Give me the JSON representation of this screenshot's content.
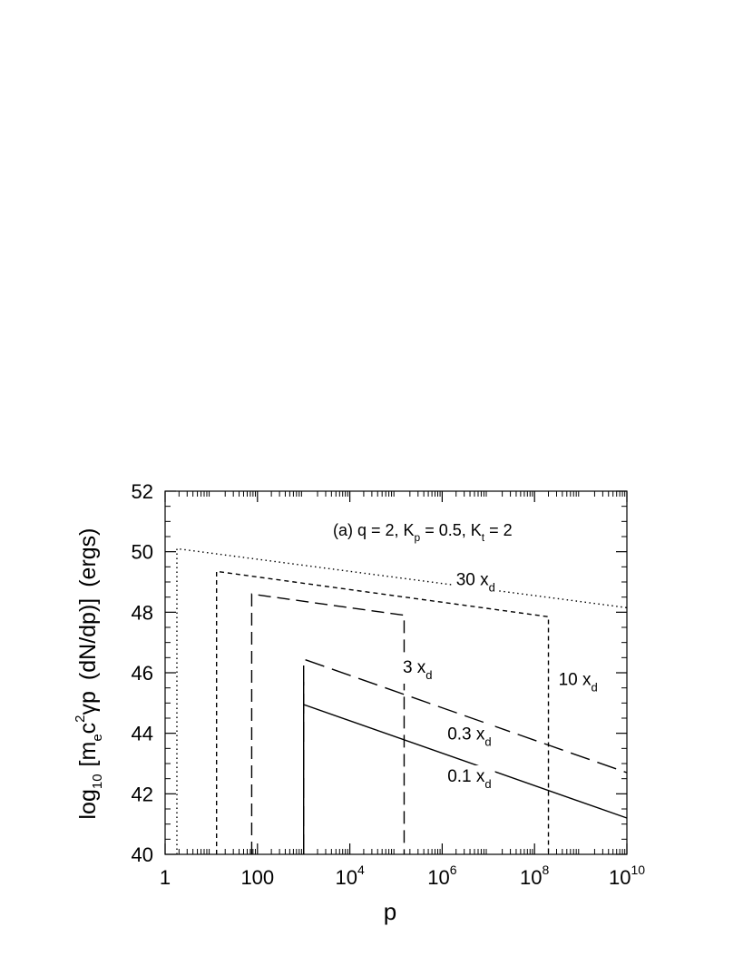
{
  "chart_data": {
    "type": "line",
    "xscale": "log",
    "xlabel": "p",
    "ylabel": {
      "prefix": "log",
      "prefix_sub": "10",
      "open": "[m",
      "me_sub": "e",
      "c": "c",
      "c_sup": "2",
      "gamma_p": "γp",
      "rest": "(dN/dp)]",
      "units": "(ergs)"
    },
    "xlim": [
      1,
      10000000000
    ],
    "ylim": [
      40,
      52
    ],
    "x_ticks": [
      {
        "value": 1,
        "base": "1",
        "exp": ""
      },
      {
        "value": 100,
        "base": "100",
        "exp": ""
      },
      {
        "value": 10000,
        "base": "10",
        "exp": "4"
      },
      {
        "value": 1000000,
        "base": "10",
        "exp": "6"
      },
      {
        "value": 100000000,
        "base": "10",
        "exp": "8"
      },
      {
        "value": 10000000000,
        "base": "10",
        "exp": "10"
      }
    ],
    "y_ticks": [
      "40",
      "42",
      "44",
      "46",
      "48",
      "50",
      "52"
    ],
    "annotation": {
      "prefix": "(a)  q = 2, K",
      "kp_sub": "p",
      "mid": " = 0.5, K",
      "kt_sub": "t",
      "suffix": " = 2"
    },
    "series": [
      {
        "label_base": "0.1  x",
        "label_sub": "d",
        "label_at": [
          1300000,
          42.4
        ],
        "style": "solid",
        "points": [
          [
            1000,
            40
          ],
          [
            1000,
            45.7
          ],
          [
            1000,
            44.95
          ],
          [
            10000000000,
            41.2
          ]
        ]
      },
      {
        "label_base": "0.3  x",
        "label_sub": "d",
        "label_at": [
          1300000,
          43.8
        ],
        "style": "longdash",
        "points": [
          [
            1000,
            40
          ],
          [
            1000,
            46.45
          ],
          [
            10000000000,
            42.7
          ]
        ]
      },
      {
        "label_base": "3  x",
        "label_sub": "d",
        "label_at": [
          140000,
          46.0
        ],
        "style": "medium-dash",
        "points": [
          [
            75,
            40
          ],
          [
            75,
            48.6
          ],
          [
            150000,
            47.9
          ],
          [
            150000,
            40
          ]
        ]
      },
      {
        "label_base": "10  x",
        "label_sub": "d",
        "label_at": [
          330000000,
          45.6
        ],
        "style": "short-dash",
        "points": [
          [
            13,
            40
          ],
          [
            13,
            49.35
          ],
          [
            200000000,
            47.85
          ],
          [
            200000000,
            40
          ]
        ]
      },
      {
        "label_base": "30  x",
        "label_sub": "d",
        "label_at": [
          2000000,
          48.9
        ],
        "style": "dotted",
        "points": [
          [
            1.8,
            40
          ],
          [
            1.8,
            50.1
          ],
          [
            10000000000,
            48.15
          ]
        ]
      }
    ]
  }
}
